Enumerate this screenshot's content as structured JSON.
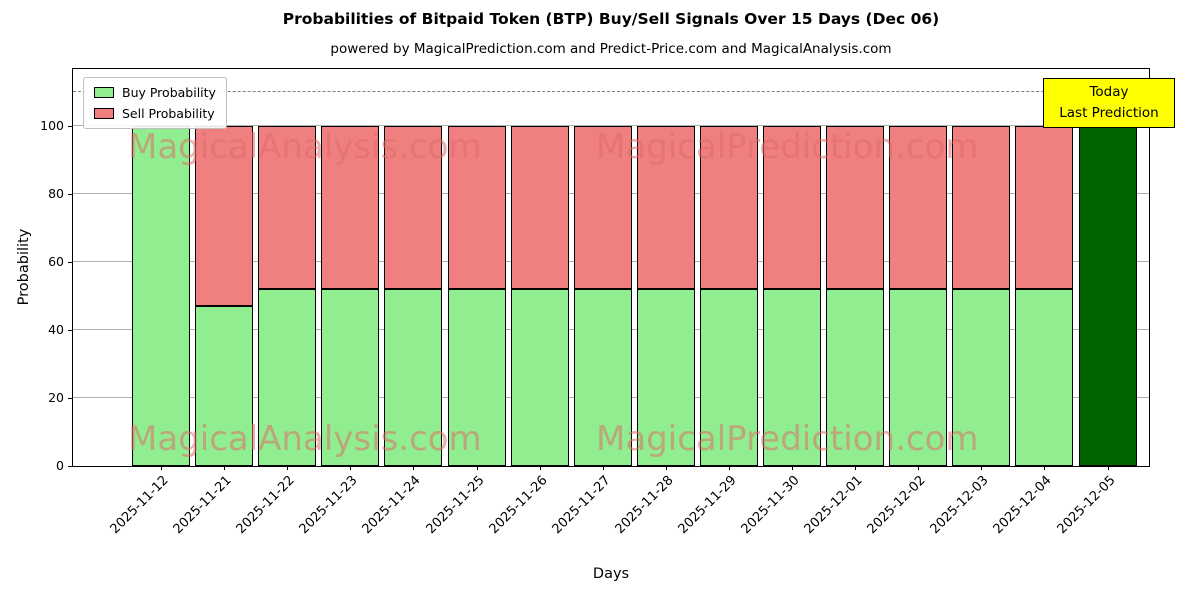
{
  "title": "Probabilities of Bitpaid Token (BTP) Buy/Sell Signals Over 15 Days (Dec 06)",
  "subtitle": "powered by MagicalPrediction.com and Predict-Price.com and MagicalAnalysis.com",
  "annotation": {
    "line1": "Today",
    "line2": "Last Prediction",
    "bg_color": "#FFFF00"
  },
  "watermarks": [
    "MagicalAnalysis.com",
    "MagicalPrediction.com"
  ],
  "watermark_color": "#E06C6C",
  "chart_data": {
    "type": "bar",
    "stacked": true,
    "title": "Probabilities of Bitpaid Token (BTP) Buy/Sell Signals Over 15 Days (Dec 06)",
    "xlabel": "Days",
    "ylabel": "Probability",
    "ylim": [
      0,
      116.7
    ],
    "yticks": [
      0,
      20,
      40,
      60,
      80,
      100
    ],
    "grid": true,
    "dashed_line_y": 110,
    "legend_position": "upper left",
    "categories": [
      "2025-11-12",
      "2025-11-21",
      "2025-11-22",
      "2025-11-23",
      "2025-11-24",
      "2025-11-25",
      "2025-11-26",
      "2025-11-27",
      "2025-11-28",
      "2025-11-29",
      "2025-11-30",
      "2025-12-01",
      "2025-12-02",
      "2025-12-03",
      "2025-12-04",
      "2025-12-05"
    ],
    "series": [
      {
        "name": "Buy Probability",
        "color": "#90EE90",
        "values": [
          100,
          47,
          52,
          52,
          52,
          52,
          52,
          52,
          52,
          52,
          52,
          52,
          52,
          52,
          52,
          100
        ]
      },
      {
        "name": "Sell Probability",
        "color": "#F08080",
        "values": [
          0,
          53,
          48,
          48,
          48,
          48,
          48,
          48,
          48,
          48,
          48,
          48,
          48,
          48,
          48,
          0
        ]
      }
    ],
    "today_bar_index": 15,
    "today_bar_color": "#006400"
  }
}
